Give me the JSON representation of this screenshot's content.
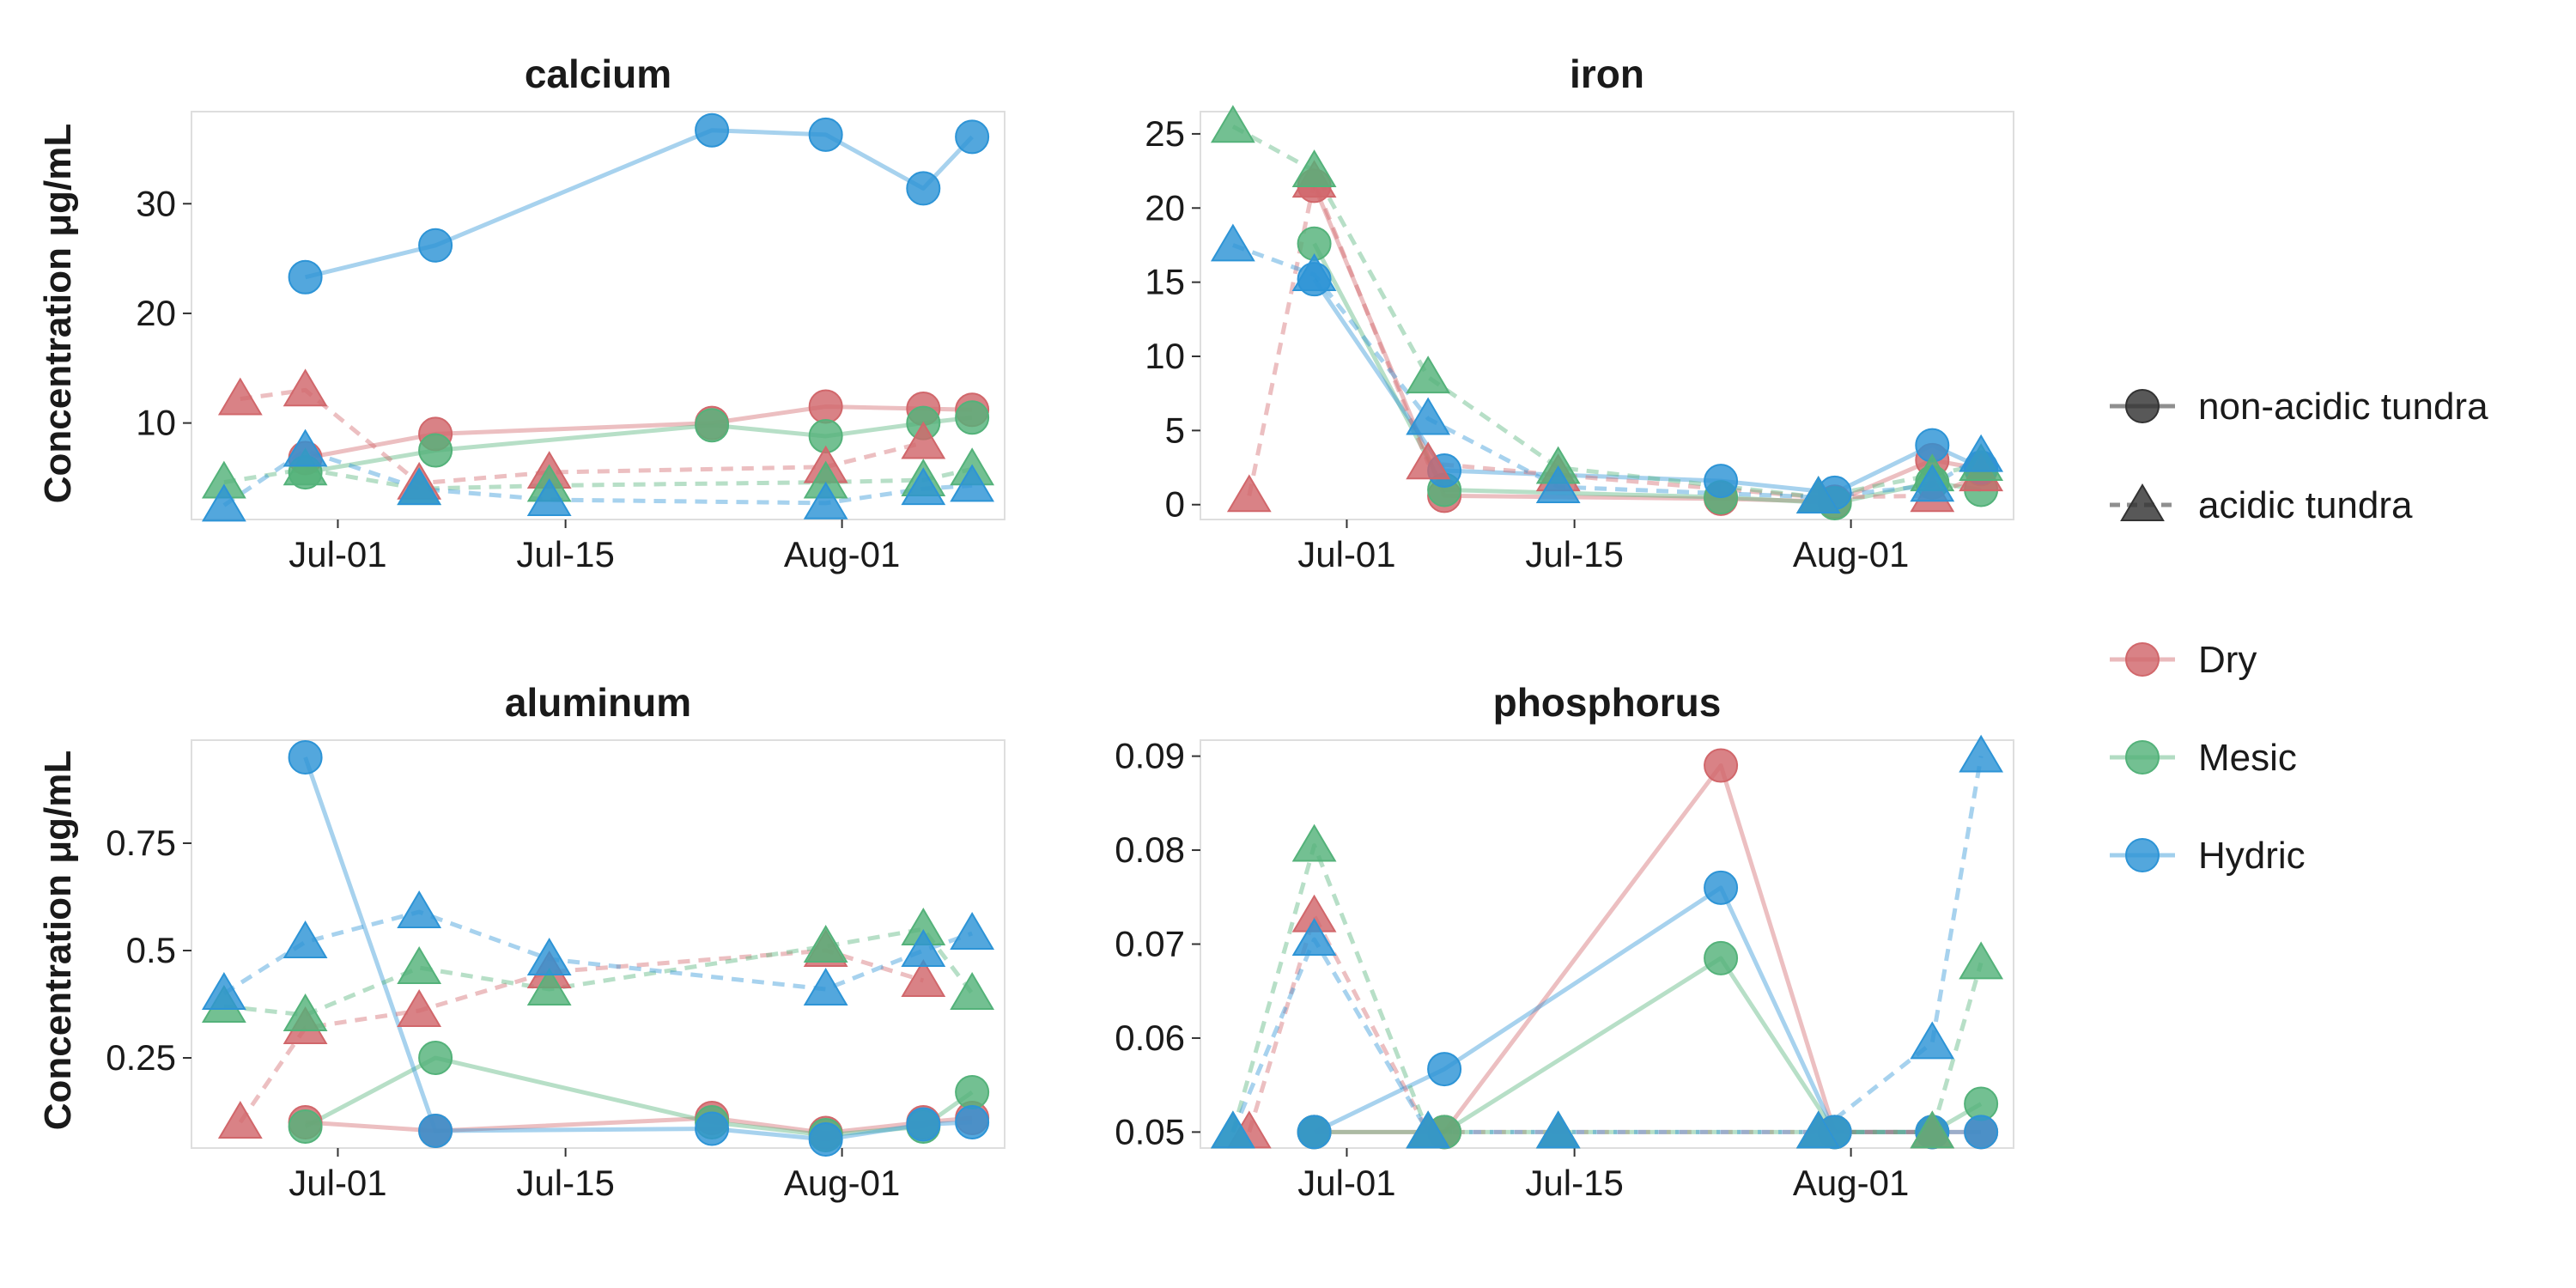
{
  "chart_data": {
    "type": "line",
    "ylabel": "Concentration μg/mL",
    "x_ticks": [
      "Jul-01",
      "Jul-15",
      "Aug-01"
    ],
    "x_tick_dates": [
      "2019-07-01",
      "2019-07-15",
      "2019-08-01"
    ],
    "x_range": [
      "2019-06-22",
      "2019-08-11"
    ],
    "grid": false,
    "legend": {
      "placement": "right",
      "shape_title": "",
      "shapes": [
        {
          "name": "non-acidic tundra",
          "marker": "circle",
          "line": "solid"
        },
        {
          "name": "acidic tundra",
          "marker": "triangle",
          "line": "dashed"
        }
      ],
      "colors": [
        {
          "name": "Dry",
          "color": "#d1676b"
        },
        {
          "name": "Mesic",
          "color": "#54b27a"
        },
        {
          "name": "Hydric",
          "color": "#2d94d6"
        }
      ]
    },
    "panels": [
      {
        "title": "calcium",
        "ylim": [
          1.2,
          38.4
        ],
        "y_ticks": [
          10,
          20,
          30
        ],
        "series": [
          {
            "name": "Dry",
            "shape": "non-acidic tundra",
            "points": [
              [
                "2019-06-29",
                6.8
              ],
              [
                "2019-07-07",
                9.0
              ],
              [
                "2019-07-24",
                10.0
              ],
              [
                "2019-07-31",
                11.5
              ],
              [
                "2019-08-06",
                11.3
              ],
              [
                "2019-08-09",
                11.2
              ]
            ]
          },
          {
            "name": "Mesic",
            "shape": "non-acidic tundra",
            "points": [
              [
                "2019-06-29",
                5.5
              ],
              [
                "2019-07-07",
                7.5
              ],
              [
                "2019-07-24",
                9.8
              ],
              [
                "2019-07-31",
                8.8
              ],
              [
                "2019-08-06",
                10.0
              ],
              [
                "2019-08-09",
                10.5
              ]
            ]
          },
          {
            "name": "Hydric",
            "shape": "non-acidic tundra",
            "points": [
              [
                "2019-06-29",
                23.3
              ],
              [
                "2019-07-07",
                26.2
              ],
              [
                "2019-07-24",
                36.7
              ],
              [
                "2019-07-31",
                36.3
              ],
              [
                "2019-08-06",
                31.4
              ],
              [
                "2019-08-09",
                36.1
              ]
            ]
          },
          {
            "name": "Dry",
            "shape": "acidic tundra",
            "points": [
              [
                "2019-06-25",
                12.2
              ],
              [
                "2019-06-29",
                13.0
              ],
              [
                "2019-07-06",
                4.5
              ],
              [
                "2019-07-14",
                5.5
              ],
              [
                "2019-07-31",
                6.0
              ],
              [
                "2019-08-06",
                8.2
              ]
            ]
          },
          {
            "name": "Mesic",
            "shape": "acidic tundra",
            "points": [
              [
                "2019-06-24",
                4.6
              ],
              [
                "2019-06-29",
                5.8
              ],
              [
                "2019-07-06",
                4.0
              ],
              [
                "2019-07-14",
                4.3
              ],
              [
                "2019-07-31",
                4.6
              ],
              [
                "2019-08-06",
                4.8
              ],
              [
                "2019-08-09",
                5.8
              ]
            ]
          },
          {
            "name": "Hydric",
            "shape": "acidic tundra",
            "points": [
              [
                "2019-06-24",
                2.5
              ],
              [
                "2019-06-29",
                7.5
              ],
              [
                "2019-07-06",
                4.0
              ],
              [
                "2019-07-14",
                3.0
              ],
              [
                "2019-07-31",
                2.7
              ],
              [
                "2019-08-06",
                4.0
              ],
              [
                "2019-08-09",
                4.3
              ]
            ]
          }
        ]
      },
      {
        "title": "iron",
        "ylim": [
          -1.0,
          26.5
        ],
        "y_ticks": [
          0,
          5,
          10,
          15,
          20,
          25
        ],
        "series": [
          {
            "name": "Dry",
            "shape": "non-acidic tundra",
            "points": [
              [
                "2019-06-29",
                21.5
              ],
              [
                "2019-07-07",
                0.6
              ],
              [
                "2019-07-24",
                0.4
              ],
              [
                "2019-07-31",
                0.2
              ],
              [
                "2019-08-06",
                3.0
              ],
              [
                "2019-08-09",
                2.4
              ]
            ]
          },
          {
            "name": "Mesic",
            "shape": "non-acidic tundra",
            "points": [
              [
                "2019-06-29",
                17.6
              ],
              [
                "2019-07-07",
                1.0
              ],
              [
                "2019-07-24",
                0.5
              ],
              [
                "2019-07-31",
                0.1
              ],
              [
                "2019-08-06",
                1.5
              ],
              [
                "2019-08-09",
                1.0
              ]
            ]
          },
          {
            "name": "Hydric",
            "shape": "non-acidic tundra",
            "points": [
              [
                "2019-06-29",
                15.2
              ],
              [
                "2019-07-07",
                2.3
              ],
              [
                "2019-07-24",
                1.6
              ],
              [
                "2019-07-31",
                0.8
              ],
              [
                "2019-08-06",
                4.0
              ],
              [
                "2019-08-09",
                2.5
              ]
            ]
          },
          {
            "name": "Dry",
            "shape": "acidic tundra",
            "points": [
              [
                "2019-06-25",
                0.6
              ],
              [
                "2019-06-29",
                21.8
              ],
              [
                "2019-07-06",
                2.8
              ],
              [
                "2019-07-14",
                2.0
              ],
              [
                "2019-07-30",
                0.5
              ],
              [
                "2019-08-06",
                0.6
              ],
              [
                "2019-08-09",
                2.0
              ]
            ]
          },
          {
            "name": "Mesic",
            "shape": "acidic tundra",
            "points": [
              [
                "2019-06-24",
                25.5
              ],
              [
                "2019-06-29",
                22.5
              ],
              [
                "2019-07-06",
                8.6
              ],
              [
                "2019-07-14",
                2.5
              ],
              [
                "2019-07-30",
                0.5
              ],
              [
                "2019-08-06",
                2.0
              ],
              [
                "2019-08-09",
                2.7
              ]
            ]
          },
          {
            "name": "Hydric",
            "shape": "acidic tundra",
            "points": [
              [
                "2019-06-24",
                17.5
              ],
              [
                "2019-06-29",
                15.5
              ],
              [
                "2019-07-06",
                5.8
              ],
              [
                "2019-07-14",
                1.2
              ],
              [
                "2019-07-30",
                0.5
              ],
              [
                "2019-08-06",
                1.3
              ],
              [
                "2019-08-09",
                3.3
              ]
            ]
          }
        ]
      },
      {
        "title": "aluminum",
        "ylim": [
          0.04,
          0.99
        ],
        "y_ticks": [
          0.25,
          0.5,
          0.75
        ],
        "series": [
          {
            "name": "Dry",
            "shape": "non-acidic tundra",
            "points": [
              [
                "2019-06-29",
                0.1
              ],
              [
                "2019-07-07",
                0.08
              ],
              [
                "2019-07-24",
                0.11
              ],
              [
                "2019-07-31",
                0.075
              ],
              [
                "2019-08-06",
                0.1
              ],
              [
                "2019-08-09",
                0.11
              ]
            ]
          },
          {
            "name": "Mesic",
            "shape": "non-acidic tundra",
            "points": [
              [
                "2019-06-29",
                0.09
              ],
              [
                "2019-07-07",
                0.25
              ],
              [
                "2019-07-24",
                0.1
              ],
              [
                "2019-07-31",
                0.07
              ],
              [
                "2019-08-06",
                0.09
              ],
              [
                "2019-08-09",
                0.17
              ]
            ]
          },
          {
            "name": "Hydric",
            "shape": "non-acidic tundra",
            "points": [
              [
                "2019-06-29",
                0.95
              ],
              [
                "2019-07-07",
                0.08
              ],
              [
                "2019-07-24",
                0.085
              ],
              [
                "2019-07-31",
                0.06
              ],
              [
                "2019-08-06",
                0.095
              ],
              [
                "2019-08-09",
                0.1
              ]
            ]
          },
          {
            "name": "Dry",
            "shape": "acidic tundra",
            "points": [
              [
                "2019-06-25",
                0.1
              ],
              [
                "2019-06-29",
                0.32
              ],
              [
                "2019-07-06",
                0.36
              ],
              [
                "2019-07-14",
                0.45
              ],
              [
                "2019-07-31",
                0.5
              ],
              [
                "2019-08-06",
                0.43
              ]
            ]
          },
          {
            "name": "Mesic",
            "shape": "acidic tundra",
            "points": [
              [
                "2019-06-24",
                0.37
              ],
              [
                "2019-06-29",
                0.35
              ],
              [
                "2019-07-06",
                0.46
              ],
              [
                "2019-07-14",
                0.41
              ],
              [
                "2019-07-31",
                0.51
              ],
              [
                "2019-08-06",
                0.55
              ],
              [
                "2019-08-09",
                0.4
              ]
            ]
          },
          {
            "name": "Hydric",
            "shape": "acidic tundra",
            "points": [
              [
                "2019-06-24",
                0.4
              ],
              [
                "2019-06-29",
                0.52
              ],
              [
                "2019-07-06",
                0.59
              ],
              [
                "2019-07-14",
                0.48
              ],
              [
                "2019-07-31",
                0.41
              ],
              [
                "2019-08-06",
                0.5
              ],
              [
                "2019-08-09",
                0.54
              ]
            ]
          }
        ]
      },
      {
        "title": "phosphorus",
        "ylim": [
          0.0483,
          0.0917
        ],
        "y_ticks": [
          0.05,
          0.06,
          0.07,
          0.08,
          0.09
        ],
        "series": [
          {
            "name": "Dry",
            "shape": "non-acidic tundra",
            "points": [
              [
                "2019-06-29",
                0.05
              ],
              [
                "2019-07-07",
                0.05
              ],
              [
                "2019-07-24",
                0.089
              ],
              [
                "2019-07-31",
                0.05
              ],
              [
                "2019-08-06",
                0.05
              ],
              [
                "2019-08-09",
                0.05
              ]
            ]
          },
          {
            "name": "Mesic",
            "shape": "non-acidic tundra",
            "points": [
              [
                "2019-06-29",
                0.05
              ],
              [
                "2019-07-07",
                0.05
              ],
              [
                "2019-07-24",
                0.0685
              ],
              [
                "2019-07-31",
                0.05
              ],
              [
                "2019-08-06",
                0.05
              ],
              [
                "2019-08-09",
                0.053
              ]
            ]
          },
          {
            "name": "Hydric",
            "shape": "non-acidic tundra",
            "points": [
              [
                "2019-06-29",
                0.05
              ],
              [
                "2019-07-07",
                0.0567
              ],
              [
                "2019-07-24",
                0.076
              ],
              [
                "2019-07-31",
                0.05
              ],
              [
                "2019-08-06",
                0.05
              ],
              [
                "2019-08-09",
                0.05
              ]
            ]
          },
          {
            "name": "Dry",
            "shape": "acidic tundra",
            "points": [
              [
                "2019-06-25",
                0.05
              ],
              [
                "2019-06-29",
                0.073
              ],
              [
                "2019-07-06",
                0.05
              ],
              [
                "2019-07-14",
                0.05
              ],
              [
                "2019-07-30",
                0.05
              ],
              [
                "2019-08-06",
                0.05
              ]
            ]
          },
          {
            "name": "Mesic",
            "shape": "acidic tundra",
            "points": [
              [
                "2019-06-24",
                0.05
              ],
              [
                "2019-06-29",
                0.0805
              ],
              [
                "2019-07-06",
                0.05
              ],
              [
                "2019-07-14",
                0.05
              ],
              [
                "2019-07-30",
                0.05
              ],
              [
                "2019-08-06",
                0.05
              ],
              [
                "2019-08-09",
                0.068
              ]
            ]
          },
          {
            "name": "Hydric",
            "shape": "acidic tundra",
            "points": [
              [
                "2019-06-24",
                0.05
              ],
              [
                "2019-06-29",
                0.0705
              ],
              [
                "2019-07-06",
                0.05
              ],
              [
                "2019-07-14",
                0.05
              ],
              [
                "2019-07-30",
                0.05
              ],
              [
                "2019-08-06",
                0.0595
              ],
              [
                "2019-08-09",
                0.09
              ]
            ]
          }
        ]
      }
    ]
  }
}
